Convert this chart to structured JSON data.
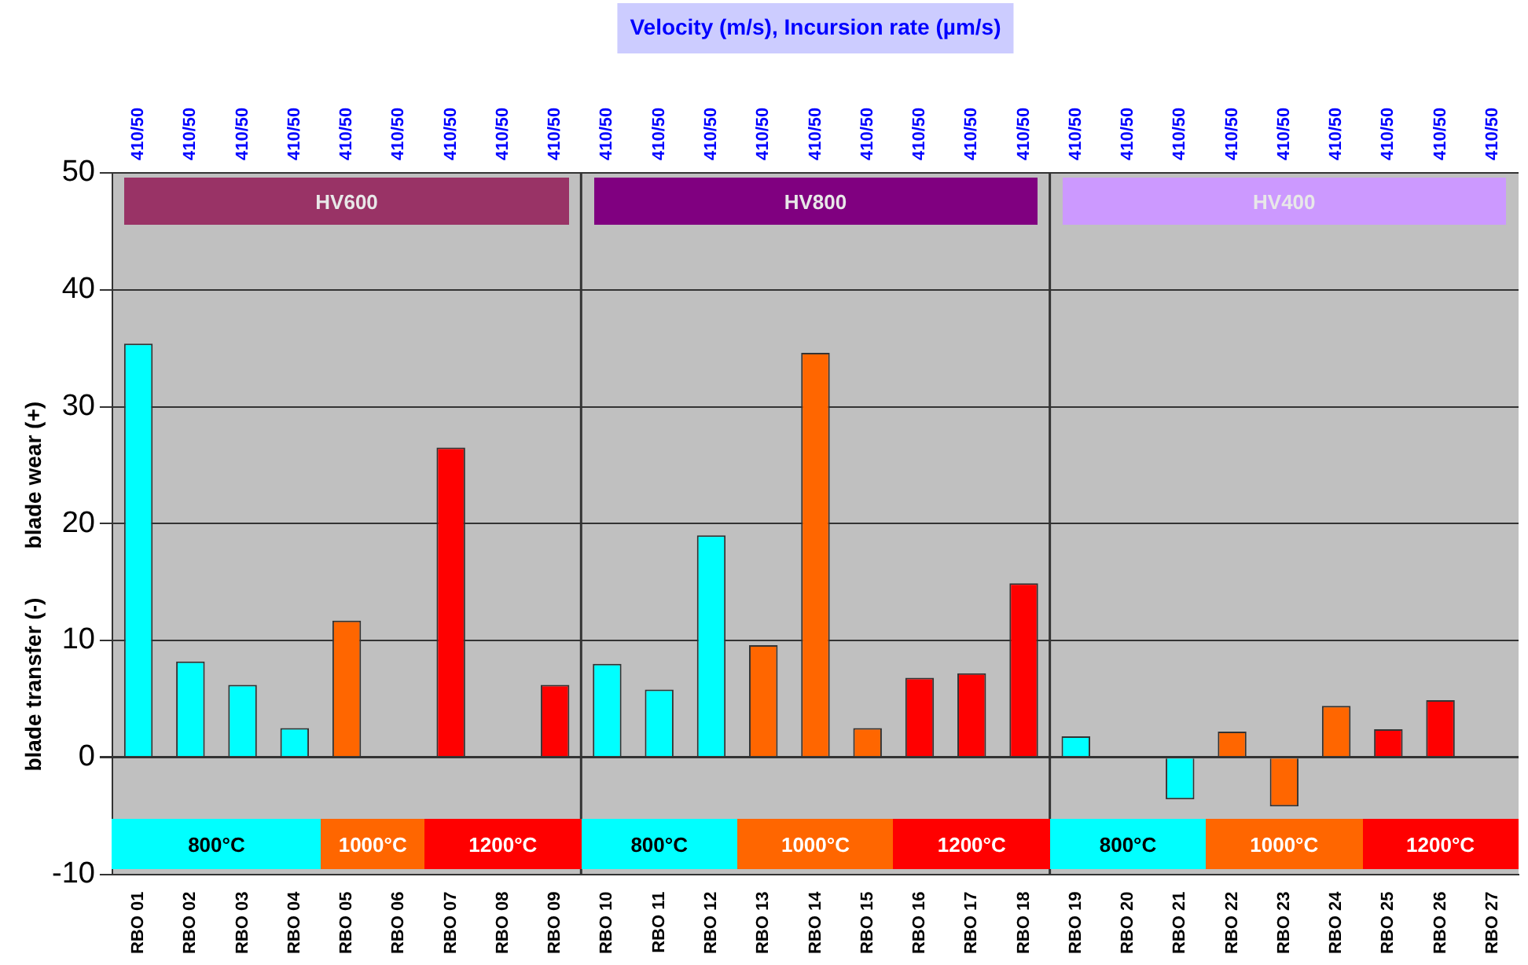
{
  "chart_data": {
    "type": "bar",
    "x2label": "Velocity (m/s), Incursion rate (µm/s)",
    "ylabel": "blade transfer (-)        blade wear (+)",
    "categories": [
      "RBO 01",
      "RBO 02",
      "RBO 03",
      "RBO 04",
      "RBO 05",
      "RBO 06",
      "RBO 07",
      "RBO 08",
      "RBO 09",
      "RBO 10",
      "RBO 11",
      "RBO 12",
      "RBO 13",
      "RBO 14",
      "RBO 15",
      "RBO 16",
      "RBO 17",
      "RBO 18",
      "RBO 19",
      "RBO 20",
      "RBO 21",
      "RBO 22",
      "RBO 23",
      "RBO 24",
      "RBO 25",
      "RBO 26",
      "RBO 27"
    ],
    "values": [
      35.4,
      8.2,
      6.2,
      2.5,
      11.7,
      null,
      26.5,
      null,
      6.2,
      8.0,
      5.8,
      19.0,
      9.6,
      34.6,
      2.5,
      6.8,
      7.2,
      14.9,
      1.8,
      null,
      -3.6,
      2.2,
      -4.2,
      4.4,
      2.4,
      4.9,
      null
    ],
    "colors": [
      "#00ffff",
      "#00ffff",
      "#00ffff",
      "#00ffff",
      "#ff6600",
      "#ff6600",
      "#ff0000",
      "#ff0000",
      "#ff0000",
      "#00ffff",
      "#00ffff",
      "#00ffff",
      "#ff6600",
      "#ff6600",
      "#ff6600",
      "#ff0000",
      "#ff0000",
      "#ff0000",
      "#00ffff",
      "#00ffff",
      "#00ffff",
      "#ff6600",
      "#ff6600",
      "#ff6600",
      "#ff0000",
      "#ff0000",
      "#ff0000"
    ],
    "ylim": [
      -10,
      50
    ],
    "yticks": [
      -10,
      0,
      10,
      20,
      30,
      40,
      50
    ],
    "grid": "y",
    "annotations": [
      "410/50",
      "410/50",
      "410/50",
      "410/50",
      "410/50",
      "410/50",
      "410/50",
      "410/50",
      "410/50",
      "410/50",
      "410/50",
      "410/50",
      "410/50",
      "410/50",
      "410/50",
      "410/50",
      "410/50",
      "410/50",
      "410/50",
      "410/50",
      "410/50",
      "410/50",
      "410/50",
      "410/50",
      "410/50",
      "410/50",
      "410/50",
      "HV600",
      "HV800",
      "HV400",
      "800°C",
      "1000°C",
      "1200°C",
      "800°C",
      "1000°C",
      "1200°C",
      "800°C",
      "1000°C",
      "1200°C"
    ]
  }
}
